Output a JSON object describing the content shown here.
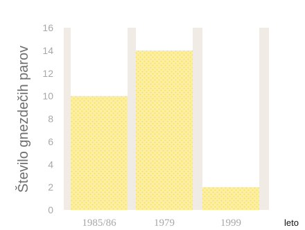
{
  "chart_data": {
    "type": "bar",
    "categories": [
      "1985/86",
      "1979",
      "1999"
    ],
    "values": [
      10,
      14,
      2
    ],
    "ylabel": "Število gnezdečih parov",
    "xlabel": "leto",
    "ylim": [
      0,
      16
    ],
    "yticks": [
      0,
      2,
      4,
      6,
      8,
      10,
      12,
      14,
      16
    ],
    "grid": false
  },
  "colors": {
    "bar_fill": "#fcef9e",
    "bar_dots": "#f2dc6c",
    "column_background": "#ffffff",
    "plot_background": "#f0ebe4",
    "tick_label": "#a7a7a7",
    "axis_label": "#6f6f6f",
    "xlabel": "#111111"
  }
}
